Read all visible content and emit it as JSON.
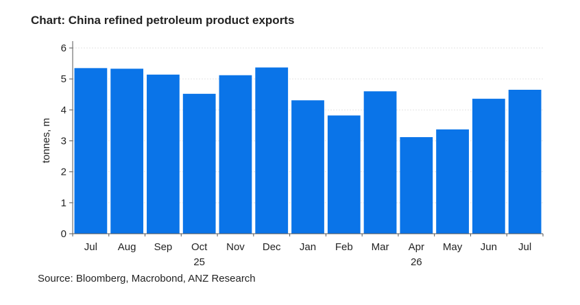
{
  "title": "Chart: China refined petroleum product exports",
  "source": "Source:  Bloomberg, Macrobond, ANZ Research",
  "chart_data": {
    "type": "bar",
    "title": "Chart: China refined petroleum product exports",
    "ylabel": "tonnes, m",
    "xlabel": "",
    "ylim": [
      0,
      6
    ],
    "yticks": [
      0,
      1,
      2,
      3,
      4,
      5,
      6
    ],
    "categories": [
      "Jul",
      "Aug",
      "Sep",
      "Oct",
      "Nov",
      "Dec",
      "Jan",
      "Feb",
      "Mar",
      "Apr",
      "May",
      "Jun",
      "Jul"
    ],
    "year_labels": [
      {
        "label": "25",
        "category_index": 3
      },
      {
        "label": "26",
        "category_index": 9
      }
    ],
    "values": [
      5.35,
      5.33,
      5.14,
      4.52,
      5.12,
      5.37,
      4.31,
      3.82,
      4.6,
      3.12,
      3.37,
      4.36,
      4.65
    ],
    "bar_color": "#0a74e8",
    "grid": true,
    "grid_color": "#e3e3e3"
  }
}
